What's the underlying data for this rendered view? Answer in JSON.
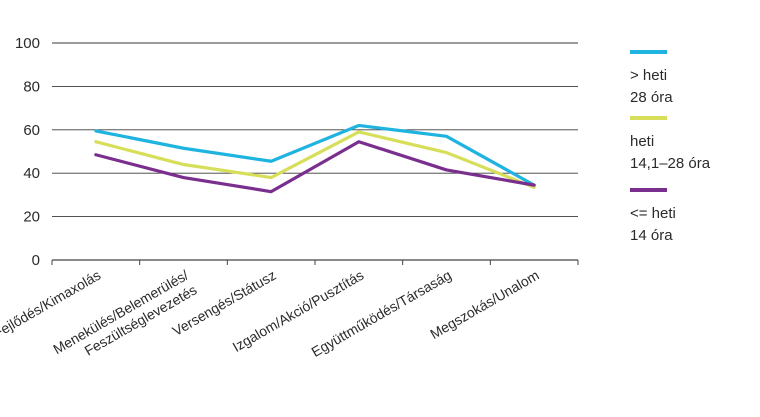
{
  "chart_data": {
    "type": "line",
    "categories": [
      [
        "Fejlődés/Kimaxolás"
      ],
      [
        "Menekülés/Belemerülés/",
        "Feszültséglevezetés"
      ],
      [
        "Versengés/Státusz"
      ],
      [
        "Izgalom/Akció/Pusztítás"
      ],
      [
        "Együttműködés/Társaság"
      ],
      [
        "Megszokás/Unalom"
      ]
    ],
    "yticks": [
      "0",
      "20",
      "40",
      "60",
      "80",
      "100"
    ],
    "ylim": [
      0,
      100
    ],
    "grid": true,
    "legend_position": "right",
    "series": [
      {
        "name": [
          "> heti",
          "28 óra"
        ],
        "color": "#1fb3e0",
        "values": [
          59.5,
          51.5,
          45.5,
          62,
          57,
          34.5
        ]
      },
      {
        "name": [
          "heti",
          "14,1–28 óra"
        ],
        "color": "#d7df5a",
        "values": [
          54.5,
          44,
          38,
          59,
          49.5,
          33.5
        ]
      },
      {
        "name": [
          "<= heti",
          "14 óra"
        ],
        "color": "#7a2e8e",
        "values": [
          48.5,
          38,
          31.5,
          54.5,
          41.5,
          34.5
        ]
      }
    ]
  }
}
